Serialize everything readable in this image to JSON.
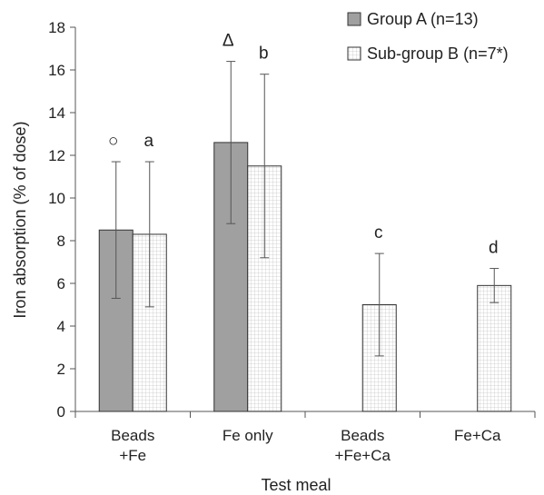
{
  "chart_data": {
    "type": "bar",
    "categories": [
      [
        "Beads",
        "+Fe"
      ],
      [
        "Fe only"
      ],
      [
        "Beads",
        "+Fe+Ca"
      ],
      [
        "Fe+Ca"
      ]
    ],
    "series": [
      {
        "name": "Group A (n=13)",
        "color": "#a0a0a0",
        "fill_style": "solid-gray",
        "values": [
          8.5,
          12.6,
          null,
          null
        ],
        "error_low": [
          5.3,
          8.8,
          null,
          null
        ],
        "error_high": [
          11.7,
          16.4,
          null,
          null
        ]
      },
      {
        "name": "Sub-group B (n=7*)",
        "color": "#ffffff",
        "fill_style": "grid-pattern",
        "values": [
          8.3,
          11.5,
          5.0,
          5.9
        ],
        "error_low": [
          4.9,
          7.2,
          2.6,
          5.1
        ],
        "error_high": [
          11.7,
          15.8,
          7.4,
          6.7
        ]
      }
    ],
    "annotations": [
      {
        "category": 0,
        "series": 0,
        "text": "○"
      },
      {
        "category": 0,
        "series": 1,
        "text": "a"
      },
      {
        "category": 1,
        "series": 0,
        "text": "Δ"
      },
      {
        "category": 1,
        "series": 1,
        "text": "b"
      },
      {
        "category": 2,
        "series": 1,
        "text": "c"
      },
      {
        "category": 3,
        "series": 1,
        "text": "d"
      }
    ],
    "yticks": [
      0,
      2,
      4,
      6,
      8,
      10,
      12,
      14,
      16,
      18
    ],
    "ylim": [
      0,
      18
    ],
    "xlabel": "Test meal",
    "ylabel": "Iron absorption (% of dose)",
    "legend_position": "top-right",
    "grid": false
  }
}
